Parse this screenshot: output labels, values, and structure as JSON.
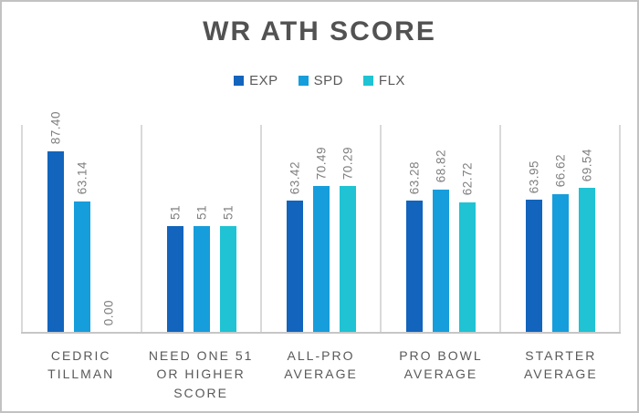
{
  "frame": {
    "background": "#FFFFFF",
    "border_color": "#C2C2C2"
  },
  "chart_data": {
    "type": "bar",
    "title": "WR ATH SCORE",
    "legend_position": "top",
    "legend": [
      "EXP",
      "SPD",
      "FLX"
    ],
    "categories": [
      "CEDRIC TILLMAN",
      "NEED ONE 51 OR HIGHER SCORE",
      "ALL-PRO AVERAGE",
      "PRO BOWL AVERAGE",
      "STARTER AVERAGE"
    ],
    "series": [
      {
        "name": "EXP",
        "color": "#1264BC",
        "values": [
          87.4,
          51,
          63.42,
          63.28,
          63.95
        ],
        "labels": [
          "87.40",
          "51",
          "63.42",
          "63.28",
          "63.95"
        ]
      },
      {
        "name": "SPD",
        "color": "#169DDB",
        "values": [
          63.14,
          51,
          70.49,
          68.82,
          66.62
        ],
        "labels": [
          "63.14",
          "51",
          "70.49",
          "68.82",
          "66.62"
        ]
      },
      {
        "name": "FLX",
        "color": "#1FC3D3",
        "values": [
          0.0,
          51,
          70.29,
          62.72,
          69.54
        ],
        "labels": [
          "0.00",
          "51",
          "70.29",
          "62.72",
          "69.54"
        ]
      }
    ],
    "ylim": [
      0,
      100
    ],
    "value_label_rotation": -90,
    "gridlines": "vertical category separators and bottom axis only",
    "colors": {
      "title_text": "#525252",
      "value_label_text": "#7F7F7F",
      "category_label_text": "#595959",
      "axis_line": "#C6C6C6",
      "separator_line": "#D9D9D9"
    }
  }
}
